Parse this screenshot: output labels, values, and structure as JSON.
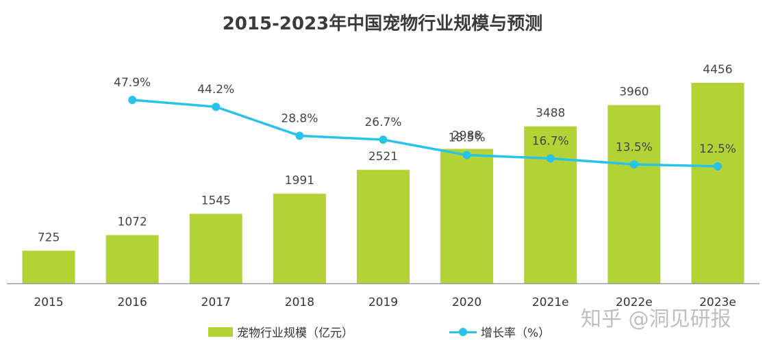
{
  "chart_data": {
    "type": "bar",
    "title": "2015-2023年中国宠物行业规模与预测",
    "categories": [
      "2015",
      "2016",
      "2017",
      "2018",
      "2019",
      "2020",
      "2021e",
      "2022e",
      "2023e"
    ],
    "series": [
      {
        "name": "宠物行业规模（亿元）",
        "type": "bar",
        "color": "#b2d235",
        "values": [
          725,
          1072,
          1545,
          1991,
          2521,
          2988,
          3488,
          3960,
          4456
        ],
        "labels": [
          "725",
          "1072",
          "1545",
          "1991",
          "2521",
          "2988",
          "3488",
          "3960",
          "4456"
        ]
      },
      {
        "name": "增长率（%）",
        "type": "line",
        "color": "#29c2e8",
        "values": [
          null,
          47.9,
          44.2,
          28.8,
          26.7,
          18.5,
          16.7,
          13.5,
          12.5
        ],
        "labels": [
          "",
          "47.9%",
          "44.2%",
          "28.8%",
          "26.7%",
          "18.5%",
          "16.7%",
          "13.5%",
          "12.5%"
        ]
      }
    ],
    "xlabel": "",
    "ylabel": "",
    "ylim_bar": [
      0,
      4600
    ],
    "ylim_line": [
      0,
      60
    ],
    "grid": false,
    "legend_position": "bottom"
  },
  "watermark": "知乎 @洞见研报"
}
